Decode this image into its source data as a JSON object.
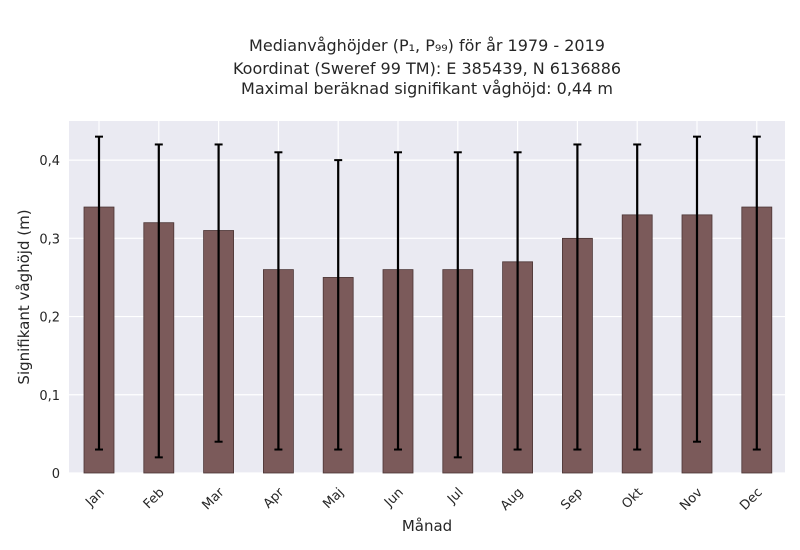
{
  "chart_data": {
    "type": "bar",
    "title": [
      "Medianvåghöjder (P₁, P₉₉) för år 1979 - 2019",
      "Koordinat (Sweref 99 TM): E 385439, N 6136886",
      "Maximal beräknad signifikant våghöjd: 0,44 m"
    ],
    "xlabel": "Månad",
    "ylabel": "Signifikant våghöjd (m)",
    "categories": [
      "Jan",
      "Feb",
      "Mar",
      "Apr",
      "Maj",
      "Jun",
      "Jul",
      "Aug",
      "Sep",
      "Okt",
      "Nov",
      "Dec"
    ],
    "values": [
      0.34,
      0.32,
      0.31,
      0.26,
      0.25,
      0.26,
      0.26,
      0.27,
      0.3,
      0.33,
      0.33,
      0.34
    ],
    "error_low": [
      0.03,
      0.02,
      0.04,
      0.03,
      0.03,
      0.03,
      0.02,
      0.03,
      0.03,
      0.03,
      0.04,
      0.03
    ],
    "error_high": [
      0.43,
      0.42,
      0.42,
      0.41,
      0.4,
      0.41,
      0.41,
      0.41,
      0.42,
      0.42,
      0.43,
      0.43
    ],
    "ylim": [
      0,
      0.45
    ],
    "yticks": [
      0,
      0.1,
      0.2,
      0.3,
      0.4
    ],
    "ytick_labels": [
      "0",
      "0,1",
      "0,2",
      "0,3",
      "0,4"
    ],
    "grid": true,
    "colors": {
      "bar": "#7b5a5a",
      "bar_edge": "#4a3434",
      "error": "#000000",
      "background": "#eaeaf2",
      "grid": "#ffffff"
    }
  }
}
